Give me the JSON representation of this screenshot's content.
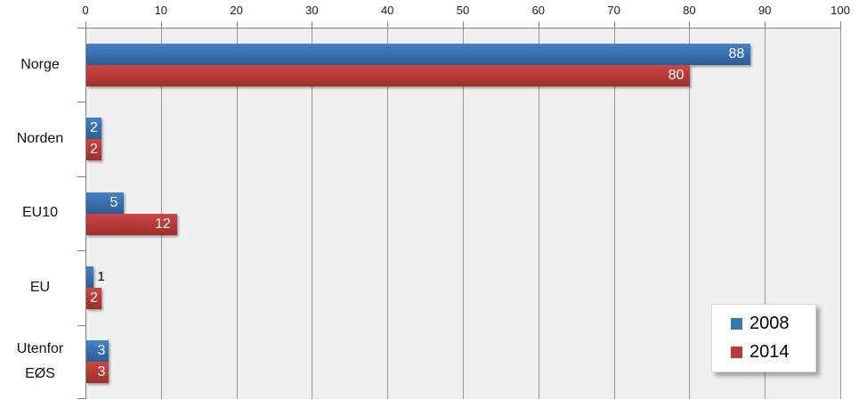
{
  "chart_data": {
    "type": "bar",
    "orientation": "horizontal",
    "title": "",
    "xlabel": "",
    "ylabel": "",
    "xlim": [
      0,
      100
    ],
    "x_ticks": [
      0,
      10,
      20,
      30,
      40,
      50,
      60,
      70,
      80,
      90,
      100
    ],
    "x_tick_labels": [
      "0",
      "10",
      "20",
      "30",
      "40",
      "50",
      "60",
      "70",
      "80",
      "90",
      "100"
    ],
    "grid": true,
    "axis_position": "top",
    "categories": [
      "Norge",
      "Norden",
      "EU10",
      "EU",
      "Utenfor EØS"
    ],
    "category_lines": [
      [
        "Norge"
      ],
      [
        "Norden"
      ],
      [
        "EU10"
      ],
      [
        "EU"
      ],
      [
        "Utenfor",
        "EØS"
      ]
    ],
    "series": [
      {
        "name": "2008",
        "values": [
          88,
          2,
          5,
          1,
          3
        ],
        "color": "#3a76b6",
        "gradient_top": "#4282c9",
        "gradient_bottom": "#2d5c93"
      },
      {
        "name": "2014",
        "values": [
          80,
          2,
          12,
          2,
          3
        ],
        "color": "#be3a37",
        "gradient_top": "#cc4742",
        "gradient_bottom": "#9d2f2c"
      }
    ],
    "value_labels_shown": true,
    "legend_position": "bottom-right"
  },
  "colors": {
    "plot_background": "#f0f0f0",
    "page_background": "#ffffff",
    "gridline": "#999999",
    "axis_line": "#808080",
    "tick_text": "#1a1a1a",
    "value_label_inside": "#ffffff",
    "value_label_outside": "#000000"
  }
}
